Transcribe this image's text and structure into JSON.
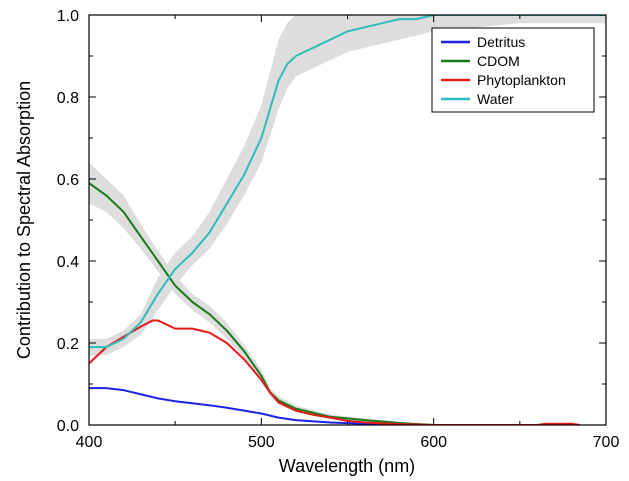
{
  "chart_data": {
    "type": "line",
    "title": "",
    "xlabel": "Wavelength (nm)",
    "ylabel": "Contribution to Spectral Absorption",
    "xlim": [
      400,
      700
    ],
    "ylim": [
      0,
      1.0
    ],
    "x_ticks": [
      400,
      500,
      600,
      700
    ],
    "y_ticks": [
      "0.0",
      "0.2",
      "0.4",
      "0.6",
      "0.8",
      "1.0"
    ],
    "legend_position": "top-right",
    "grid": false,
    "band_color": "#dddddd",
    "series": [
      {
        "name": "Detritus",
        "color": "#1f22e6",
        "points": [
          [
            400,
            0.09
          ],
          [
            410,
            0.09
          ],
          [
            420,
            0.085
          ],
          [
            430,
            0.075
          ],
          [
            440,
            0.065
          ],
          [
            450,
            0.058
          ],
          [
            460,
            0.053
          ],
          [
            470,
            0.048
          ],
          [
            480,
            0.042
          ],
          [
            490,
            0.035
          ],
          [
            500,
            0.028
          ],
          [
            510,
            0.018
          ],
          [
            520,
            0.012
          ],
          [
            540,
            0.006
          ],
          [
            560,
            0.003
          ],
          [
            580,
            0.001
          ],
          [
            600,
            0
          ]
        ],
        "band": null
      },
      {
        "name": "CDOM",
        "color": "#177c17",
        "points": [
          [
            400,
            0.59
          ],
          [
            410,
            0.56
          ],
          [
            420,
            0.52
          ],
          [
            430,
            0.46
          ],
          [
            440,
            0.4
          ],
          [
            450,
            0.34
          ],
          [
            460,
            0.3
          ],
          [
            470,
            0.27
          ],
          [
            480,
            0.23
          ],
          [
            490,
            0.18
          ],
          [
            500,
            0.12
          ],
          [
            505,
            0.08
          ],
          [
            510,
            0.06
          ],
          [
            520,
            0.04
          ],
          [
            530,
            0.03
          ],
          [
            540,
            0.02
          ],
          [
            560,
            0.012
          ],
          [
            580,
            0.005
          ],
          [
            600,
            0
          ]
        ],
        "band": {
          "lower": [
            0.54,
            0.52,
            0.48,
            0.43,
            0.375,
            0.32,
            0.28,
            0.25,
            0.21,
            0.165,
            0.105,
            0.07,
            0.05,
            0.032,
            0.024,
            0.015,
            0.008,
            0.002,
            0
          ],
          "upper": [
            0.64,
            0.6,
            0.56,
            0.49,
            0.425,
            0.365,
            0.32,
            0.29,
            0.25,
            0.195,
            0.135,
            0.09,
            0.07,
            0.048,
            0.036,
            0.025,
            0.016,
            0.008,
            0
          ]
        }
      },
      {
        "name": "Phytoplankton",
        "color": "#e61a1a",
        "points": [
          [
            400,
            0.15
          ],
          [
            410,
            0.19
          ],
          [
            420,
            0.215
          ],
          [
            430,
            0.24
          ],
          [
            437,
            0.255
          ],
          [
            440,
            0.255
          ],
          [
            450,
            0.235
          ],
          [
            460,
            0.235
          ],
          [
            470,
            0.225
          ],
          [
            480,
            0.2
          ],
          [
            490,
            0.16
          ],
          [
            500,
            0.11
          ],
          [
            505,
            0.08
          ],
          [
            510,
            0.055
          ],
          [
            520,
            0.035
          ],
          [
            530,
            0.025
          ],
          [
            540,
            0.018
          ],
          [
            550,
            0.01
          ],
          [
            560,
            0.006
          ],
          [
            580,
            0.002
          ],
          [
            600,
            0
          ],
          [
            660,
            0
          ],
          [
            665,
            0.003
          ],
          [
            680,
            0.003
          ],
          [
            685,
            0
          ]
        ],
        "band": null
      },
      {
        "name": "Water",
        "color": "#2ebcbc",
        "points": [
          [
            400,
            0.19
          ],
          [
            410,
            0.19
          ],
          [
            420,
            0.21
          ],
          [
            430,
            0.25
          ],
          [
            440,
            0.32
          ],
          [
            450,
            0.38
          ],
          [
            460,
            0.42
          ],
          [
            470,
            0.47
          ],
          [
            480,
            0.54
          ],
          [
            490,
            0.61
          ],
          [
            500,
            0.7
          ],
          [
            510,
            0.84
          ],
          [
            515,
            0.88
          ],
          [
            520,
            0.9
          ],
          [
            530,
            0.92
          ],
          [
            540,
            0.94
          ],
          [
            550,
            0.96
          ],
          [
            560,
            0.97
          ],
          [
            570,
            0.98
          ],
          [
            580,
            0.99
          ],
          [
            590,
            0.99
          ],
          [
            600,
            1.0
          ],
          [
            650,
            1.0
          ],
          [
            700,
            1.0
          ]
        ],
        "band": {
          "lower": [
            0.17,
            0.17,
            0.19,
            0.22,
            0.28,
            0.34,
            0.39,
            0.43,
            0.49,
            0.56,
            0.64,
            0.77,
            0.82,
            0.85,
            0.87,
            0.89,
            0.91,
            0.92,
            0.93,
            0.94,
            0.95,
            0.96,
            0.98,
            0.98
          ],
          "upper": [
            0.21,
            0.21,
            0.23,
            0.27,
            0.36,
            0.42,
            0.46,
            0.52,
            0.6,
            0.68,
            0.78,
            0.94,
            0.98,
            1.0,
            1.0,
            1.0,
            1.0,
            1.0,
            1.0,
            1.0,
            1.0,
            1.0,
            1.0,
            1.0
          ]
        }
      }
    ]
  }
}
